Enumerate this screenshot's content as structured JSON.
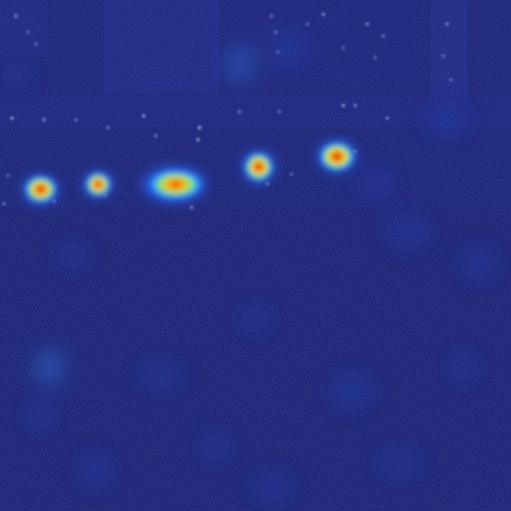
{
  "image": {
    "kind": "heatmap-overlay-photo",
    "colors": {
      "background": "#0a1066",
      "background_dark": "#06094f",
      "hot_core": "#b00000",
      "hot_mid": "#ff3a00",
      "warm": "#ffd21a",
      "cool": "#39e6ff",
      "cold": "#2a5cff",
      "specular": "#d8e4ff"
    },
    "hotspots": [
      {
        "label": "hotspot-1",
        "intensity": 0.95
      },
      {
        "label": "hotspot-2",
        "intensity": 0.9
      },
      {
        "label": "hotspot-3",
        "intensity": 0.85
      },
      {
        "label": "hotspot-4",
        "intensity": 0.9
      },
      {
        "label": "hotspot-5",
        "intensity": 0.95
      }
    ]
  }
}
